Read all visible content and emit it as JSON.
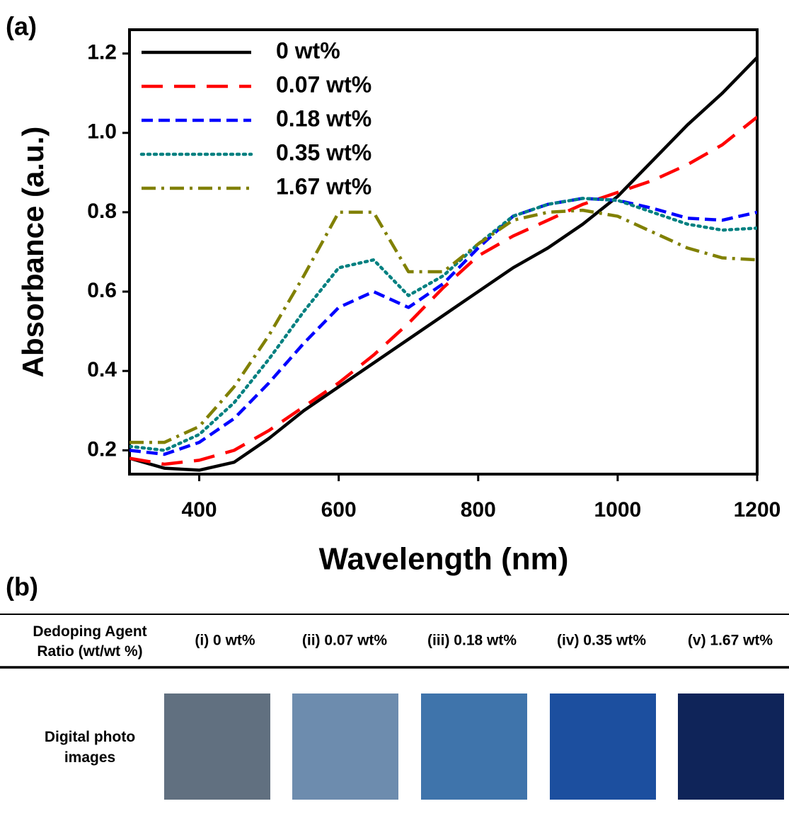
{
  "panel_a_label": "(a)",
  "chart_data": {
    "type": "line",
    "x_label": "Wavelength (nm)",
    "y_label": "Absorbance (a.u.)",
    "x": [
      300,
      350,
      400,
      450,
      500,
      550,
      600,
      650,
      700,
      750,
      800,
      850,
      900,
      950,
      1000,
      1050,
      1100,
      1150,
      1200
    ],
    "series": [
      {
        "name": "0 wt%",
        "color": "#000000",
        "dash": "solid",
        "values": [
          0.18,
          0.155,
          0.15,
          0.17,
          0.23,
          0.3,
          0.36,
          0.42,
          0.48,
          0.54,
          0.6,
          0.66,
          0.71,
          0.77,
          0.84,
          0.93,
          1.02,
          1.1,
          1.19
        ]
      },
      {
        "name": "0.07 wt%",
        "color": "#ff0000",
        "dash": "long-dash",
        "values": [
          0.18,
          0.165,
          0.175,
          0.2,
          0.25,
          0.31,
          0.37,
          0.44,
          0.52,
          0.61,
          0.69,
          0.74,
          0.78,
          0.82,
          0.85,
          0.88,
          0.92,
          0.97,
          1.04
        ]
      },
      {
        "name": "0.18 wt%",
        "color": "#0000ff",
        "dash": "dash",
        "values": [
          0.2,
          0.19,
          0.22,
          0.28,
          0.37,
          0.47,
          0.56,
          0.6,
          0.56,
          0.62,
          0.71,
          0.79,
          0.82,
          0.835,
          0.83,
          0.81,
          0.785,
          0.78,
          0.8
        ]
      },
      {
        "name": "0.35 wt%",
        "color": "#008080",
        "dash": "dotted",
        "values": [
          0.21,
          0.2,
          0.24,
          0.32,
          0.43,
          0.55,
          0.66,
          0.68,
          0.59,
          0.64,
          0.72,
          0.79,
          0.82,
          0.835,
          0.83,
          0.8,
          0.77,
          0.755,
          0.76
        ]
      },
      {
        "name": "1.67 wt%",
        "color": "#808000",
        "dash": "dash-dot",
        "values": [
          0.22,
          0.22,
          0.26,
          0.36,
          0.49,
          0.64,
          0.8,
          0.8,
          0.65,
          0.65,
          0.72,
          0.78,
          0.8,
          0.805,
          0.79,
          0.75,
          0.71,
          0.685,
          0.68
        ]
      }
    ],
    "xlim": [
      300,
      1200
    ],
    "xticks": [
      400,
      600,
      800,
      1000,
      1200
    ],
    "ylim": [
      0.14,
      1.26
    ],
    "yticks": [
      0.2,
      0.4,
      0.6,
      0.8,
      {
        "value": 1,
        "label": "1.0"
      },
      1.2
    ],
    "legend": "upper-left"
  },
  "panel_b_label": "(b)",
  "table": {
    "header": [
      "Dedoping Agent Ratio (wt/wt %)",
      "(i) 0 wt%",
      "(ii) 0.07 wt%",
      "(iii) 0.18 wt%",
      "(iv) 0.35 wt%",
      "(v) 1.67 wt%"
    ],
    "row_label": "Digital photo images"
  }
}
